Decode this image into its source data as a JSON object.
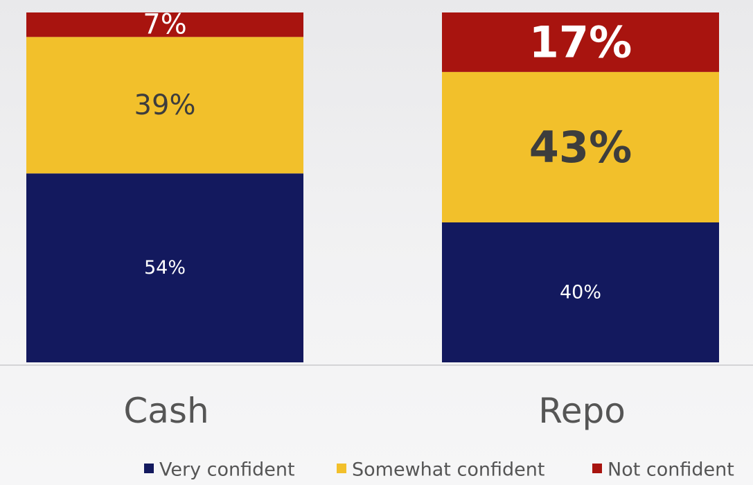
{
  "chart_data": {
    "type": "bar",
    "stacked": true,
    "categories": [
      "Cash",
      "Repo"
    ],
    "series": [
      {
        "name": "Very confident",
        "values": [
          54,
          40
        ],
        "labels": [
          "54%",
          "40%"
        ],
        "color": "#13195e"
      },
      {
        "name": "Somewhat confident",
        "values": [
          39,
          43
        ],
        "labels": [
          "39%",
          "43%"
        ],
        "color": "#f2c02b"
      },
      {
        "name": "Not confident",
        "values": [
          7,
          17
        ],
        "labels": [
          "7%",
          "17%"
        ],
        "color": "#a8140f"
      }
    ],
    "ylim": [
      0,
      100
    ],
    "legend_position": "bottom",
    "grid": false
  }
}
